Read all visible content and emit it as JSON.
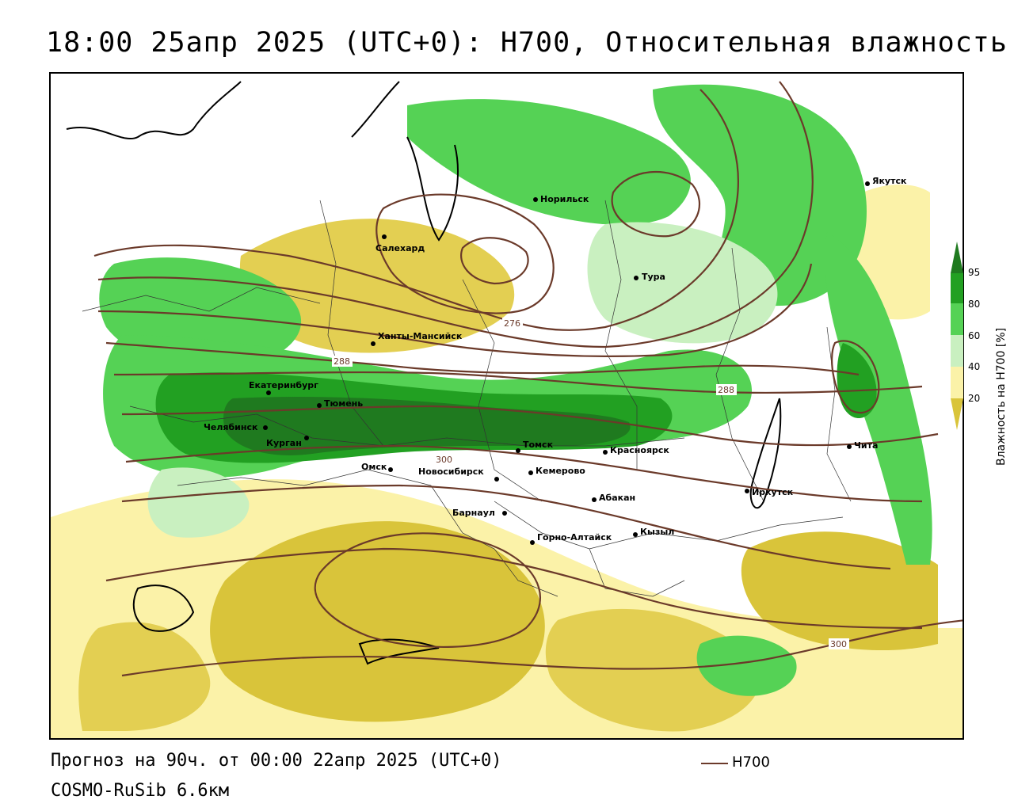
{
  "title": "18:00 25апр 2025 (UTC+0): H700, Относительная влажность",
  "footer": {
    "forecast": "Прогноз на 90ч. от 00:00 22апр 2025 (UTC+0)",
    "model": "COSMO-RuSib 6.6км",
    "contour_legend": "H700"
  },
  "colorbar": {
    "label": "Влажность на H700 [%]",
    "ticks": [
      "95",
      "80",
      "60",
      "40",
      "20"
    ],
    "colors": {
      "c95": "#1f7a1f",
      "c80": "#22a022",
      "c60": "#55d255",
      "c40": "#c9f0c0",
      "c20": "#fbf2a8",
      "c0": "#d9c43a"
    }
  },
  "contours": {
    "color": "#6b3a2a",
    "labels": [
      "276",
      "288",
      "288",
      "300",
      "300"
    ]
  },
  "cities": [
    {
      "name": "Якутск"
    },
    {
      "name": "Норильск"
    },
    {
      "name": "Салехард"
    },
    {
      "name": "Тура"
    },
    {
      "name": "Ханты-Мансийск"
    },
    {
      "name": "Екатеринбург"
    },
    {
      "name": "Тюмень"
    },
    {
      "name": "Челябинск"
    },
    {
      "name": "Курган"
    },
    {
      "name": "Омск"
    },
    {
      "name": "Новосибирск"
    },
    {
      "name": "Томск"
    },
    {
      "name": "Кемерово"
    },
    {
      "name": "Красноярск"
    },
    {
      "name": "Абакан"
    },
    {
      "name": "Барнаул"
    },
    {
      "name": "Горно-Алтайск"
    },
    {
      "name": "Кызыл"
    },
    {
      "name": "Иркутск"
    },
    {
      "name": "Чита"
    }
  ]
}
